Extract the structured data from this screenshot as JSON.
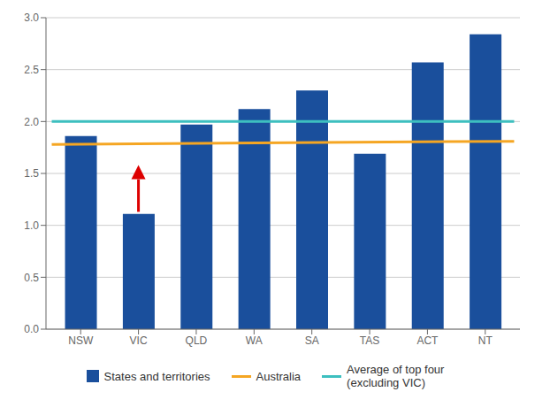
{
  "chart_data": {
    "type": "bar",
    "categories": [
      "NSW",
      "VIC",
      "QLD",
      "WA",
      "SA",
      "TAS",
      "ACT",
      "NT"
    ],
    "series": [
      {
        "name": "States and territories",
        "color": "#1a4f9c",
        "values": [
          1.86,
          1.11,
          1.97,
          2.12,
          2.3,
          1.69,
          2.57,
          2.84
        ]
      }
    ],
    "lines": [
      {
        "name": "Australia",
        "color": "#f5a623",
        "start": 1.78,
        "end": 1.81
      },
      {
        "name": "Average of top four\n(excluding VIC)",
        "color": "#3dbfbf",
        "start": 2.0,
        "end": 2.0
      }
    ],
    "arrow": {
      "category": "VIC",
      "from": 1.13,
      "to": 1.58,
      "color": "#dd0000"
    },
    "ylim": [
      0.0,
      3.0
    ],
    "yticks": [
      {
        "value": 0.0,
        "label": "0.0"
      },
      {
        "value": 0.5,
        "label": "0.5"
      },
      {
        "value": 1.0,
        "label": "1.0"
      },
      {
        "value": 1.5,
        "label": "1.5"
      },
      {
        "value": 2.0,
        "label": "2.0"
      },
      {
        "value": 2.5,
        "label": "2.5"
      },
      {
        "value": 3.0,
        "label": "3.0"
      }
    ],
    "grid": true,
    "legend": "bottom"
  }
}
